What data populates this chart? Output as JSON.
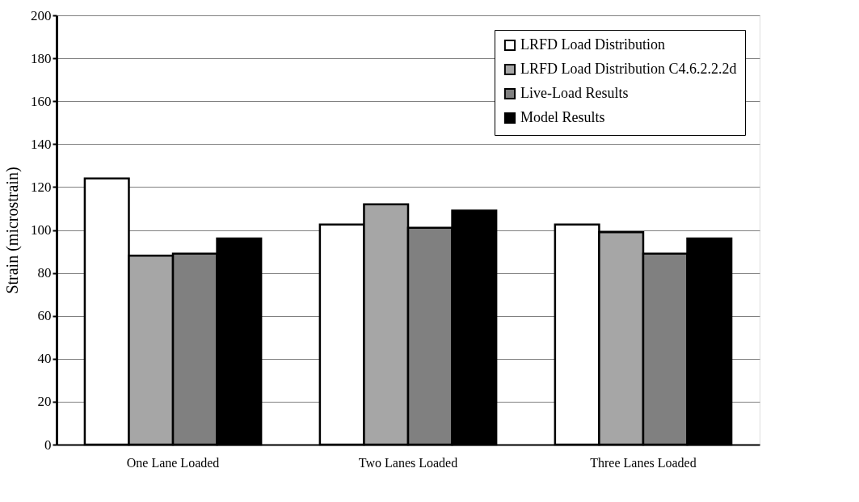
{
  "chart_data": {
    "type": "bar",
    "ylabel": "Strain (microstrain)",
    "categories": [
      "One Lane Loaded",
      "Two Lanes Loaded",
      "Three Lanes Loaded"
    ],
    "series": [
      {
        "name": "LRFD Load Distribution",
        "color": "#ffffff",
        "values": [
          124,
          102.5,
          102.5
        ]
      },
      {
        "name": "LRFD Load Distribution C4.6.2.2.2d",
        "color": "#a6a6a6",
        "values": [
          88,
          112,
          99
        ]
      },
      {
        "name": "Live-Load Results",
        "color": "#808080",
        "values": [
          89,
          101,
          89
        ]
      },
      {
        "name": "Model Results",
        "color": "#000000",
        "values": [
          96,
          109,
          96
        ]
      }
    ],
    "ylim": [
      0,
      200
    ],
    "yticks": [
      0,
      20,
      40,
      60,
      80,
      100,
      120,
      140,
      160,
      180,
      200
    ],
    "grid": "y",
    "legend": "top right"
  }
}
